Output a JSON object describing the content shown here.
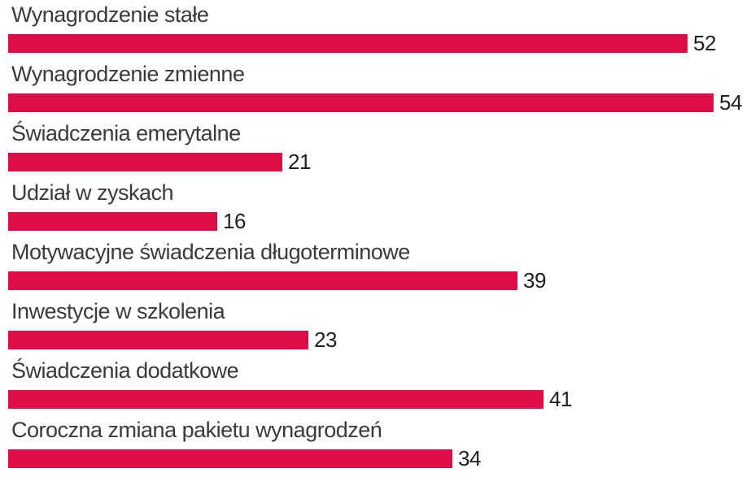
{
  "chart_data": {
    "type": "bar",
    "orientation": "horizontal",
    "title": "",
    "xlabel": "",
    "ylabel": "",
    "categories": [
      "Wynagrodzenie stałe",
      "Wynagrodzenie zmienne",
      "Świadczenia emerytalne",
      "Udział w zyskach",
      "Motywacyjne świadczenia długoterminowe",
      "Inwestycje w szkolenia",
      "Świadczenia dodatkowe",
      "Coroczna zmiana pakietu wynagrodzeń"
    ],
    "values": [
      52,
      54,
      21,
      16,
      39,
      23,
      41,
      34
    ],
    "value_labels_shown": true,
    "xlim": [
      0,
      56.9
    ],
    "grid": false,
    "legend": false,
    "axes_shown": false,
    "bar_color": "#df0c45",
    "category_label_color": "#3a3a39",
    "value_label_color": "#1e1e1c",
    "background_color": "#ffffff"
  }
}
